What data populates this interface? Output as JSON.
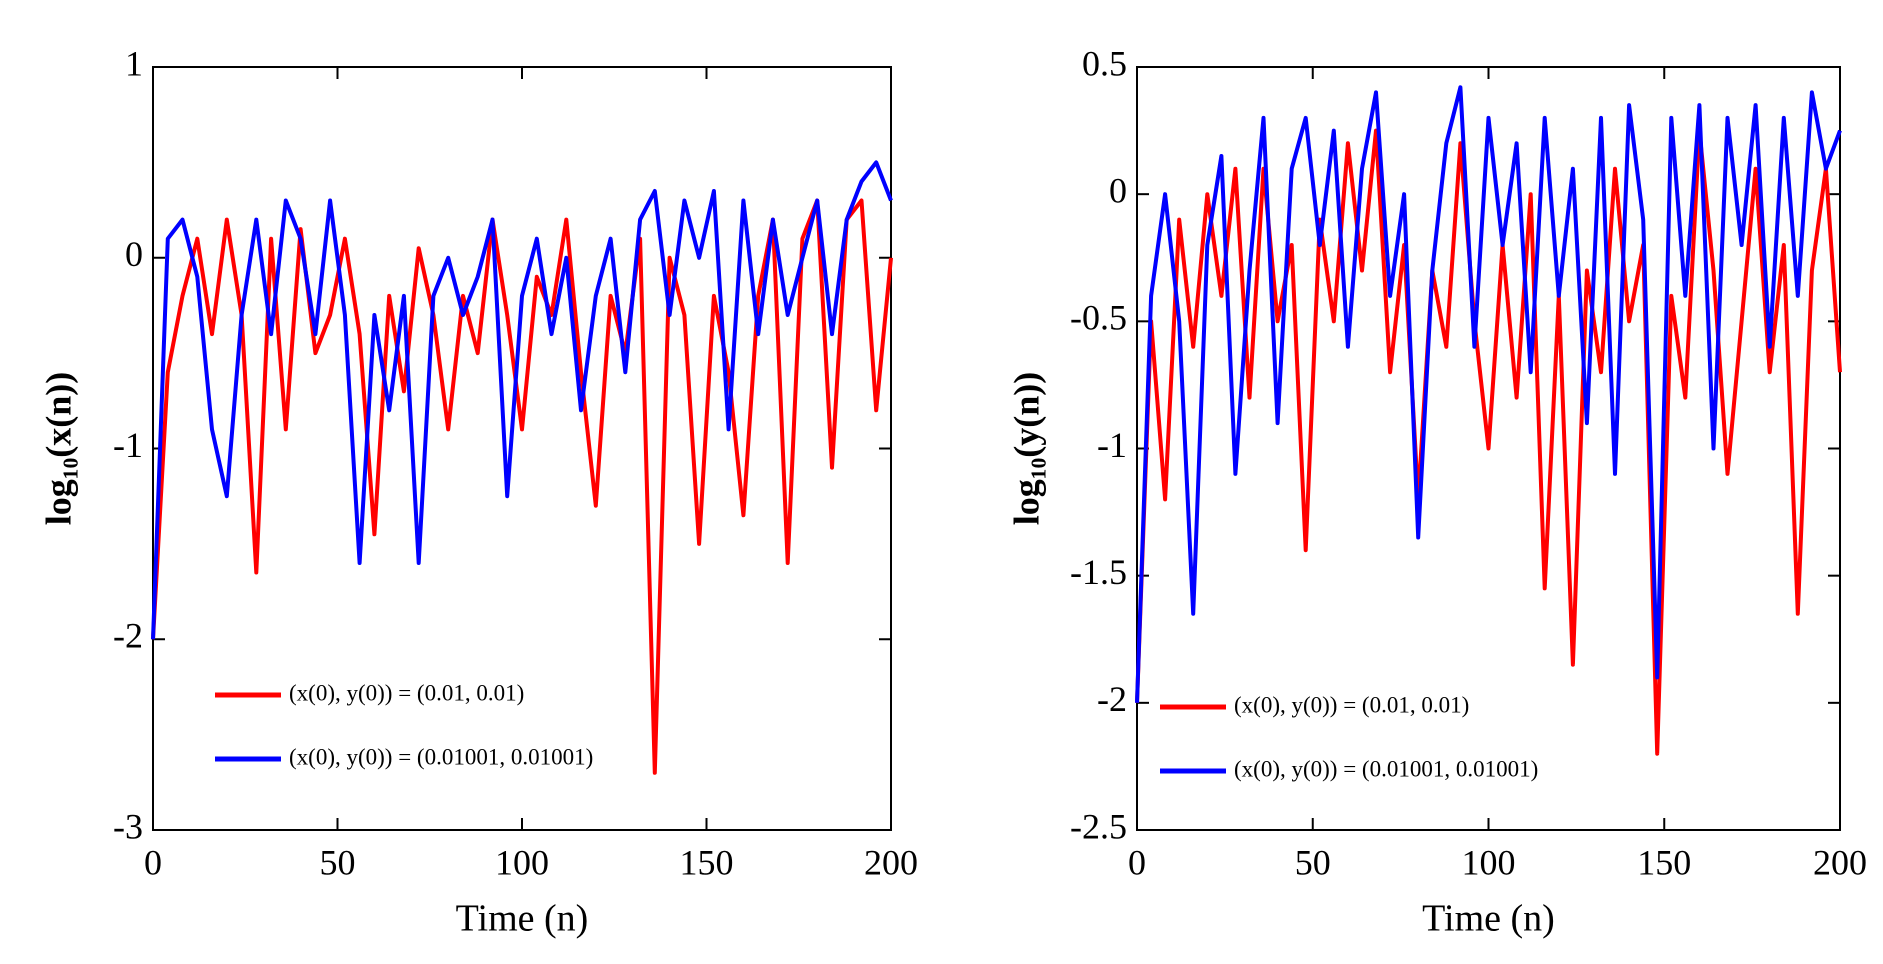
{
  "chart_data": [
    {
      "type": "line",
      "xlabel": "Time (n)",
      "ylabel": "log₁₀(x(n))",
      "x": [
        0,
        4,
        8,
        12,
        16,
        20,
        24,
        28,
        32,
        36,
        40,
        44,
        48,
        52,
        56,
        60,
        64,
        68,
        72,
        76,
        80,
        84,
        88,
        92,
        96,
        100,
        104,
        108,
        112,
        116,
        120,
        124,
        128,
        132,
        136,
        140,
        144,
        148,
        152,
        156,
        160,
        164,
        168,
        172,
        176,
        180,
        184,
        188,
        192,
        196,
        200
      ],
      "series": [
        {
          "name": "(x(0), y(0)) = (0.01, 0.01)",
          "color": "#ff0000",
          "values": [
            -2,
            -0.6,
            -0.2,
            0.1,
            -0.4,
            0.2,
            -0.3,
            -1.65,
            0.1,
            -0.9,
            0.15,
            -0.5,
            -0.3,
            0.1,
            -0.4,
            -1.45,
            -0.2,
            -0.7,
            0.05,
            -0.3,
            -0.9,
            -0.2,
            -0.5,
            0.2,
            -0.3,
            -0.9,
            -0.1,
            -0.3,
            0.2,
            -0.6,
            -1.3,
            -0.2,
            -0.5,
            0.1,
            -2.7,
            0.0,
            -0.3,
            -1.5,
            -0.2,
            -0.6,
            -1.35,
            -0.2,
            0.2,
            -1.6,
            0.1,
            0.3,
            -1.1,
            0.2,
            0.3,
            -0.8,
            0.0
          ]
        },
        {
          "name": "(x(0), y(0)) = (0.01001, 0.01001)",
          "color": "#0000ff",
          "values": [
            -2,
            0.1,
            0.2,
            -0.1,
            -0.9,
            -1.25,
            -0.3,
            0.2,
            -0.4,
            0.3,
            0.1,
            -0.4,
            0.3,
            -0.3,
            -1.6,
            -0.3,
            -0.8,
            -0.2,
            -1.6,
            -0.2,
            0.0,
            -0.3,
            -0.1,
            0.2,
            -1.25,
            -0.2,
            0.1,
            -0.4,
            0.0,
            -0.8,
            -0.2,
            0.1,
            -0.6,
            0.2,
            0.35,
            -0.3,
            0.3,
            0.0,
            0.35,
            -0.9,
            0.3,
            -0.4,
            0.2,
            -0.3,
            0.0,
            0.3,
            -0.4,
            0.2,
            0.4,
            0.5,
            0.3
          ]
        }
      ],
      "xlim": [
        0,
        200
      ],
      "xticks": [
        0,
        50,
        100,
        150,
        200
      ],
      "ylim": [
        -3,
        1
      ],
      "yticks": [
        -3,
        -2,
        -1,
        0,
        1
      ],
      "legend": "lower left"
    },
    {
      "type": "line",
      "xlabel": "Time (n)",
      "ylabel": "log₁₀(y(n))",
      "x": [
        0,
        4,
        8,
        12,
        16,
        20,
        24,
        28,
        32,
        36,
        40,
        44,
        48,
        52,
        56,
        60,
        64,
        68,
        72,
        76,
        80,
        84,
        88,
        92,
        96,
        100,
        104,
        108,
        112,
        116,
        120,
        124,
        128,
        132,
        136,
        140,
        144,
        148,
        152,
        156,
        160,
        164,
        168,
        172,
        176,
        180,
        184,
        188,
        192,
        196,
        200
      ],
      "series": [
        {
          "name": "(x(0), y(0)) = (0.01, 0.01)",
          "color": "#ff0000",
          "values": [
            -2,
            -0.5,
            -1.2,
            -0.1,
            -0.6,
            0.0,
            -0.4,
            0.1,
            -0.8,
            0.1,
            -0.5,
            -0.2,
            -1.4,
            -0.1,
            -0.5,
            0.2,
            -0.3,
            0.25,
            -0.7,
            -0.2,
            -1.2,
            -0.3,
            -0.6,
            0.2,
            -0.5,
            -1.0,
            -0.2,
            -0.8,
            0.0,
            -1.55,
            -0.4,
            -1.85,
            -0.3,
            -0.7,
            0.1,
            -0.5,
            -0.2,
            -2.2,
            -0.4,
            -0.8,
            0.25,
            -0.3,
            -1.1,
            -0.5,
            0.1,
            -0.7,
            -0.2,
            -1.65,
            -0.3,
            0.1,
            -0.7
          ]
        },
        {
          "name": "(x(0), y(0)) = (0.01001, 0.01001)",
          "color": "#0000ff",
          "values": [
            -2,
            -0.4,
            0.0,
            -0.5,
            -1.65,
            -0.2,
            0.15,
            -1.1,
            -0.3,
            0.3,
            -0.9,
            0.1,
            0.3,
            -0.2,
            0.25,
            -0.6,
            0.1,
            0.4,
            -0.4,
            0.0,
            -1.35,
            -0.3,
            0.2,
            0.42,
            -0.6,
            0.3,
            -0.2,
            0.2,
            -0.7,
            0.3,
            -0.4,
            0.1,
            -0.9,
            0.3,
            -1.1,
            0.35,
            -0.1,
            -1.9,
            0.3,
            -0.4,
            0.35,
            -1.0,
            0.3,
            -0.2,
            0.35,
            -0.6,
            0.3,
            -0.4,
            0.4,
            0.1,
            0.25
          ]
        }
      ],
      "xlim": [
        0,
        200
      ],
      "xticks": [
        0,
        50,
        100,
        150,
        200
      ],
      "ylim": [
        -2.5,
        0.5
      ],
      "yticks": [
        -2.5,
        -2,
        -1.5,
        -1,
        -0.5,
        0,
        0.5
      ],
      "legend": "lower left"
    }
  ]
}
